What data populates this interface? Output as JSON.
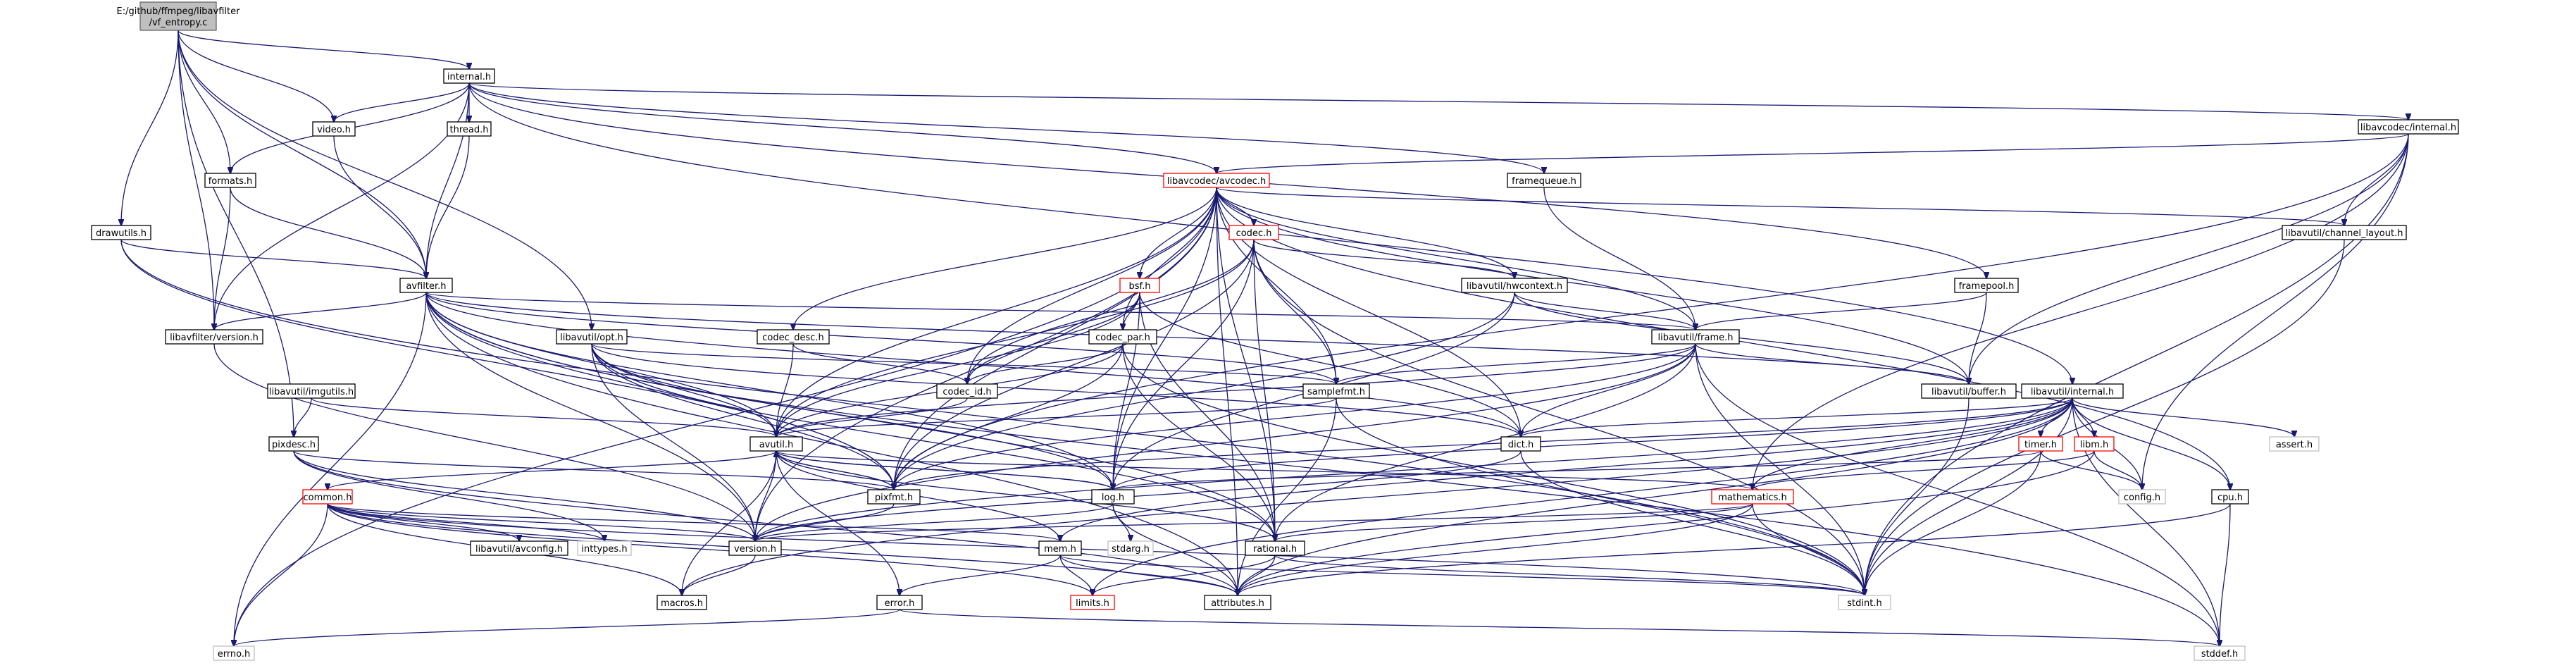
{
  "colors": {
    "edge": "#191970",
    "root_fill": "#bfbfbf",
    "border_normal": "#000000",
    "border_red": "#ff0000",
    "border_gray": "#bfbfbf"
  },
  "nodes": [
    {
      "id": "root",
      "lines": [
        "E:/github/ffmpeg/libavfilter",
        "/vf_entropy.c"
      ],
      "kind": "root"
    },
    {
      "id": "internal_h",
      "lines": [
        "internal.h"
      ],
      "kind": "normal"
    },
    {
      "id": "video_h",
      "lines": [
        "video.h"
      ],
      "kind": "normal"
    },
    {
      "id": "thread_h",
      "lines": [
        "thread.h"
      ],
      "kind": "normal"
    },
    {
      "id": "formats_h",
      "lines": [
        "formats.h"
      ],
      "kind": "normal"
    },
    {
      "id": "drawutils_h",
      "lines": [
        "drawutils.h"
      ],
      "kind": "normal"
    },
    {
      "id": "avfilter_h",
      "lines": [
        "avfilter.h"
      ],
      "kind": "normal"
    },
    {
      "id": "lavfi_version_h",
      "lines": [
        "libavfilter/version.h"
      ],
      "kind": "normal"
    },
    {
      "id": "opt_h",
      "lines": [
        "libavutil/opt.h"
      ],
      "kind": "normal"
    },
    {
      "id": "imgutils_h",
      "lines": [
        "libavutil/imgutils.h"
      ],
      "kind": "normal"
    },
    {
      "id": "pixdesc_h",
      "lines": [
        "pixdesc.h"
      ],
      "kind": "normal"
    },
    {
      "id": "common_h",
      "lines": [
        "common.h"
      ],
      "kind": "red"
    },
    {
      "id": "avconfig_h",
      "lines": [
        "libavutil/avconfig.h"
      ],
      "kind": "normal"
    },
    {
      "id": "inttypes_h",
      "lines": [
        "inttypes.h"
      ],
      "kind": "gray"
    },
    {
      "id": "errno_h",
      "lines": [
        "errno.h"
      ],
      "kind": "gray"
    },
    {
      "id": "macros_h",
      "lines": [
        "macros.h"
      ],
      "kind": "normal"
    },
    {
      "id": "limits_h",
      "lines": [
        "limits.h"
      ],
      "kind": "red"
    },
    {
      "id": "error_h",
      "lines": [
        "error.h"
      ],
      "kind": "normal"
    },
    {
      "id": "mem_h",
      "lines": [
        "mem.h"
      ],
      "kind": "normal"
    },
    {
      "id": "version_h",
      "lines": [
        "version.h"
      ],
      "kind": "normal"
    },
    {
      "id": "avutil_h",
      "lines": [
        "avutil.h"
      ],
      "kind": "normal"
    },
    {
      "id": "pixfmt_h",
      "lines": [
        "pixfmt.h"
      ],
      "kind": "normal"
    },
    {
      "id": "log_h",
      "lines": [
        "log.h"
      ],
      "kind": "normal"
    },
    {
      "id": "stdarg_h",
      "lines": [
        "stdarg.h"
      ],
      "kind": "gray"
    },
    {
      "id": "rational_h",
      "lines": [
        "rational.h"
      ],
      "kind": "normal"
    },
    {
      "id": "attributes_h",
      "lines": [
        "attributes.h"
      ],
      "kind": "normal"
    },
    {
      "id": "codec_desc_h",
      "lines": [
        "codec_desc.h"
      ],
      "kind": "normal"
    },
    {
      "id": "codec_id_h",
      "lines": [
        "codec_id.h"
      ],
      "kind": "normal"
    },
    {
      "id": "avcodec_h",
      "lines": [
        "libavcodec/avcodec.h"
      ],
      "kind": "red"
    },
    {
      "id": "codec_h",
      "lines": [
        "codec.h"
      ],
      "kind": "red"
    },
    {
      "id": "bsf_h",
      "lines": [
        "bsf.h"
      ],
      "kind": "red"
    },
    {
      "id": "codec_par_h",
      "lines": [
        "codec_par.h"
      ],
      "kind": "normal"
    },
    {
      "id": "samplefmt_h",
      "lines": [
        "samplefmt.h"
      ],
      "kind": "normal"
    },
    {
      "id": "hwcontext_h",
      "lines": [
        "libavutil/hwcontext.h"
      ],
      "kind": "normal"
    },
    {
      "id": "framequeue_h",
      "lines": [
        "framequeue.h"
      ],
      "kind": "normal"
    },
    {
      "id": "framepool_h",
      "lines": [
        "framepool.h"
      ],
      "kind": "normal"
    },
    {
      "id": "frame_h",
      "lines": [
        "libavutil/frame.h"
      ],
      "kind": "normal"
    },
    {
      "id": "buffer_h",
      "lines": [
        "libavutil/buffer.h"
      ],
      "kind": "normal"
    },
    {
      "id": "dict_h",
      "lines": [
        "dict.h"
      ],
      "kind": "normal"
    },
    {
      "id": "lavu_internal_h",
      "lines": [
        "libavutil/internal.h"
      ],
      "kind": "normal"
    },
    {
      "id": "timer_h",
      "lines": [
        "timer.h"
      ],
      "kind": "red"
    },
    {
      "id": "libm_h",
      "lines": [
        "libm.h"
      ],
      "kind": "red"
    },
    {
      "id": "mathematics_h",
      "lines": [
        "mathematics.h"
      ],
      "kind": "red"
    },
    {
      "id": "config_h",
      "lines": [
        "config.h"
      ],
      "kind": "gray"
    },
    {
      "id": "assert_h",
      "lines": [
        "assert.h"
      ],
      "kind": "gray"
    },
    {
      "id": "cpu_h",
      "lines": [
        "cpu.h"
      ],
      "kind": "normal"
    },
    {
      "id": "lavc_internal_h",
      "lines": [
        "libavcodec/internal.h"
      ],
      "kind": "normal"
    },
    {
      "id": "channel_layout_h",
      "lines": [
        "libavutil/channel_layout.h"
      ],
      "kind": "normal"
    },
    {
      "id": "stdint_h",
      "lines": [
        "stdint.h"
      ],
      "kind": "gray"
    },
    {
      "id": "stddef_h",
      "lines": [
        "stddef.h"
      ],
      "kind": "gray"
    }
  ],
  "edges": [
    [
      "root",
      "internal_h"
    ],
    [
      "root",
      "video_h"
    ],
    [
      "root",
      "formats_h"
    ],
    [
      "root",
      "drawutils_h"
    ],
    [
      "root",
      "avfilter_h"
    ],
    [
      "root",
      "lavfi_version_h"
    ],
    [
      "root",
      "opt_h"
    ],
    [
      "root",
      "pixdesc_h"
    ],
    [
      "internal_h",
      "video_h"
    ],
    [
      "internal_h",
      "thread_h"
    ],
    [
      "internal_h",
      "formats_h"
    ],
    [
      "internal_h",
      "avfilter_h"
    ],
    [
      "internal_h",
      "lavfi_version_h"
    ],
    [
      "internal_h",
      "avcodec_h"
    ],
    [
      "internal_h",
      "framequeue_h"
    ],
    [
      "internal_h",
      "framepool_h"
    ],
    [
      "internal_h",
      "lavu_internal_h"
    ],
    [
      "internal_h",
      "lavc_internal_h"
    ],
    [
      "video_h",
      "avfilter_h"
    ],
    [
      "thread_h",
      "avfilter_h"
    ],
    [
      "formats_h",
      "avfilter_h"
    ],
    [
      "formats_h",
      "lavfi_version_h"
    ],
    [
      "drawutils_h",
      "avfilter_h"
    ],
    [
      "drawutils_h",
      "pixfmt_h"
    ],
    [
      "drawutils_h",
      "stdint_h"
    ],
    [
      "avfilter_h",
      "lavfi_version_h"
    ],
    [
      "avfilter_h",
      "attributes_h"
    ],
    [
      "avfilter_h",
      "avutil_h"
    ],
    [
      "avfilter_h",
      "buffer_h"
    ],
    [
      "avfilter_h",
      "dict_h"
    ],
    [
      "avfilter_h",
      "frame_h"
    ],
    [
      "avfilter_h",
      "log_h"
    ],
    [
      "avfilter_h",
      "samplefmt_h"
    ],
    [
      "avfilter_h",
      "pixfmt_h"
    ],
    [
      "avfilter_h",
      "rational_h"
    ],
    [
      "avfilter_h",
      "stddef_h"
    ],
    [
      "avfilter_h",
      "version_h"
    ],
    [
      "avfilter_h",
      "errno_h"
    ],
    [
      "lavfi_version_h",
      "version_h"
    ],
    [
      "opt_h",
      "rational_h"
    ],
    [
      "opt_h",
      "avutil_h"
    ],
    [
      "opt_h",
      "dict_h"
    ],
    [
      "opt_h",
      "log_h"
    ],
    [
      "opt_h",
      "pixfmt_h"
    ],
    [
      "opt_h",
      "samplefmt_h"
    ],
    [
      "opt_h",
      "version_h"
    ],
    [
      "imgutils_h",
      "avutil_h"
    ],
    [
      "imgutils_h",
      "pixdesc_h"
    ],
    [
      "pixdesc_h",
      "attributes_h"
    ],
    [
      "pixdesc_h",
      "pixfmt_h"
    ],
    [
      "pixdesc_h",
      "version_h"
    ],
    [
      "pixdesc_h",
      "inttypes_h"
    ],
    [
      "avutil_h",
      "common_h"
    ],
    [
      "avutil_h",
      "error_h"
    ],
    [
      "avutil_h",
      "rational_h"
    ],
    [
      "avutil_h",
      "version_h"
    ],
    [
      "avutil_h",
      "macros_h"
    ],
    [
      "avutil_h",
      "mathematics_h"
    ],
    [
      "avutil_h",
      "log_h"
    ],
    [
      "avutil_h",
      "pixfmt_h"
    ],
    [
      "common_h",
      "errno_h"
    ],
    [
      "common_h",
      "inttypes_h"
    ],
    [
      "common_h",
      "limits_h"
    ],
    [
      "common_h",
      "stdint_h"
    ],
    [
      "common_h",
      "attributes_h"
    ],
    [
      "common_h",
      "macros_h"
    ],
    [
      "common_h",
      "version_h"
    ],
    [
      "common_h",
      "avconfig_h"
    ],
    [
      "common_h",
      "mem_h"
    ],
    [
      "mem_h",
      "attributes_h"
    ],
    [
      "mem_h",
      "error_h"
    ],
    [
      "mem_h",
      "avutil_h"
    ],
    [
      "mem_h",
      "limits_h"
    ],
    [
      "mem_h",
      "stdint_h"
    ],
    [
      "error_h",
      "errno_h"
    ],
    [
      "error_h",
      "stddef_h"
    ],
    [
      "version_h",
      "macros_h"
    ],
    [
      "pixfmt_h",
      "avutil_h"
    ],
    [
      "pixfmt_h",
      "version_h"
    ],
    [
      "log_h",
      "stdarg_h"
    ],
    [
      "log_h",
      "avutil_h"
    ],
    [
      "log_h",
      "attributes_h"
    ],
    [
      "log_h",
      "version_h"
    ],
    [
      "rational_h",
      "stdint_h"
    ],
    [
      "rational_h",
      "limits_h"
    ],
    [
      "rational_h",
      "attributes_h"
    ],
    [
      "codec_desc_h",
      "avutil_h"
    ],
    [
      "codec_desc_h",
      "codec_id_h"
    ],
    [
      "codec_id_h",
      "avutil_h"
    ],
    [
      "avcodec_h",
      "errno_h"
    ],
    [
      "avcodec_h",
      "samplefmt_h"
    ],
    [
      "avcodec_h",
      "attributes_h"
    ],
    [
      "avcodec_h",
      "avutil_h"
    ],
    [
      "avcodec_h",
      "buffer_h"
    ],
    [
      "avcodec_h",
      "cpu_h"
    ],
    [
      "avcodec_h",
      "channel_layout_h"
    ],
    [
      "avcodec_h",
      "dict_h"
    ],
    [
      "avcodec_h",
      "frame_h"
    ],
    [
      "avcodec_h",
      "hwcontext_h"
    ],
    [
      "avcodec_h",
      "log_h"
    ],
    [
      "avcodec_h",
      "pixfmt_h"
    ],
    [
      "avcodec_h",
      "rational_h"
    ],
    [
      "avcodec_h",
      "bsf_h"
    ],
    [
      "avcodec_h",
      "codec_h"
    ],
    [
      "avcodec_h",
      "codec_desc_h"
    ],
    [
      "avcodec_h",
      "codec_par_h"
    ],
    [
      "avcodec_h",
      "codec_id_h"
    ],
    [
      "avcodec_h",
      "version_h"
    ],
    [
      "codec_h",
      "stdint_h"
    ],
    [
      "codec_h",
      "avutil_h"
    ],
    [
      "codec_h",
      "hwcontext_h"
    ],
    [
      "codec_h",
      "log_h"
    ],
    [
      "codec_h",
      "pixfmt_h"
    ],
    [
      "codec_h",
      "rational_h"
    ],
    [
      "codec_h",
      "samplefmt_h"
    ],
    [
      "codec_h",
      "codec_id_h"
    ],
    [
      "bsf_h",
      "dict_h"
    ],
    [
      "bsf_h",
      "log_h"
    ],
    [
      "bsf_h",
      "rational_h"
    ],
    [
      "bsf_h",
      "codec_id_h"
    ],
    [
      "bsf_h",
      "codec_par_h"
    ],
    [
      "bsf_h",
      "avutil_h"
    ],
    [
      "codec_par_h",
      "stdint_h"
    ],
    [
      "codec_par_h",
      "avutil_h"
    ],
    [
      "codec_par_h",
      "rational_h"
    ],
    [
      "codec_par_h",
      "pixfmt_h"
    ],
    [
      "codec_par_h",
      "codec_id_h"
    ],
    [
      "samplefmt_h",
      "stdint_h"
    ],
    [
      "samplefmt_h",
      "avutil_h"
    ],
    [
      "samplefmt_h",
      "attributes_h"
    ],
    [
      "hwcontext_h",
      "buffer_h"
    ],
    [
      "hwcontext_h",
      "frame_h"
    ],
    [
      "hwcontext_h",
      "log_h"
    ],
    [
      "hwcontext_h",
      "pixfmt_h"
    ],
    [
      "framequeue_h",
      "frame_h"
    ],
    [
      "framepool_h",
      "buffer_h"
    ],
    [
      "framepool_h",
      "frame_h"
    ],
    [
      "frame_h",
      "stddef_h"
    ],
    [
      "frame_h",
      "stdint_h"
    ],
    [
      "frame_h",
      "avutil_h"
    ],
    [
      "frame_h",
      "buffer_h"
    ],
    [
      "frame_h",
      "dict_h"
    ],
    [
      "frame_h",
      "rational_h"
    ],
    [
      "frame_h",
      "samplefmt_h"
    ],
    [
      "frame_h",
      "pixfmt_h"
    ],
    [
      "frame_h",
      "version_h"
    ],
    [
      "buffer_h",
      "stdint_h"
    ],
    [
      "dict_h",
      "stdint_h"
    ],
    [
      "dict_h",
      "version_h"
    ],
    [
      "lavu_internal_h",
      "limits_h"
    ],
    [
      "lavu_internal_h",
      "stdint_h"
    ],
    [
      "lavu_internal_h",
      "stddef_h"
    ],
    [
      "lavu_internal_h",
      "assert_h"
    ],
    [
      "lavu_internal_h",
      "config_h"
    ],
    [
      "lavu_internal_h",
      "attributes_h"
    ],
    [
      "lavu_internal_h",
      "timer_h"
    ],
    [
      "lavu_internal_h",
      "cpu_h"
    ],
    [
      "lavu_internal_h",
      "dict_h"
    ],
    [
      "lavu_internal_h",
      "macros_h"
    ],
    [
      "lavu_internal_h",
      "mem_h"
    ],
    [
      "lavu_internal_h",
      "pixfmt_h"
    ],
    [
      "lavu_internal_h",
      "version_h"
    ],
    [
      "lavu_internal_h",
      "libm_h"
    ],
    [
      "lavu_internal_h",
      "log_h"
    ],
    [
      "lavu_internal_h",
      "mathematics_h"
    ],
    [
      "timer_h",
      "config_h"
    ],
    [
      "timer_h",
      "stdint_h"
    ],
    [
      "timer_h",
      "log_h"
    ],
    [
      "libm_h",
      "config_h"
    ],
    [
      "libm_h",
      "attributes_h"
    ],
    [
      "libm_h",
      "mathematics_h"
    ],
    [
      "mathematics_h",
      "stdint_h"
    ],
    [
      "mathematics_h",
      "attributes_h"
    ],
    [
      "mathematics_h",
      "rational_h"
    ],
    [
      "mathematics_h",
      "version_h"
    ],
    [
      "cpu_h",
      "stddef_h"
    ],
    [
      "cpu_h",
      "attributes_h"
    ],
    [
      "lavc_internal_h",
      "stdint_h"
    ],
    [
      "lavc_internal_h",
      "buffer_h"
    ],
    [
      "lavc_internal_h",
      "channel_layout_h"
    ],
    [
      "lavc_internal_h",
      "mathematics_h"
    ],
    [
      "lavc_internal_h",
      "pixfmt_h"
    ],
    [
      "lavc_internal_h",
      "avcodec_h"
    ],
    [
      "lavc_internal_h",
      "config_h"
    ],
    [
      "channel_layout_h",
      "stdint_h"
    ]
  ]
}
